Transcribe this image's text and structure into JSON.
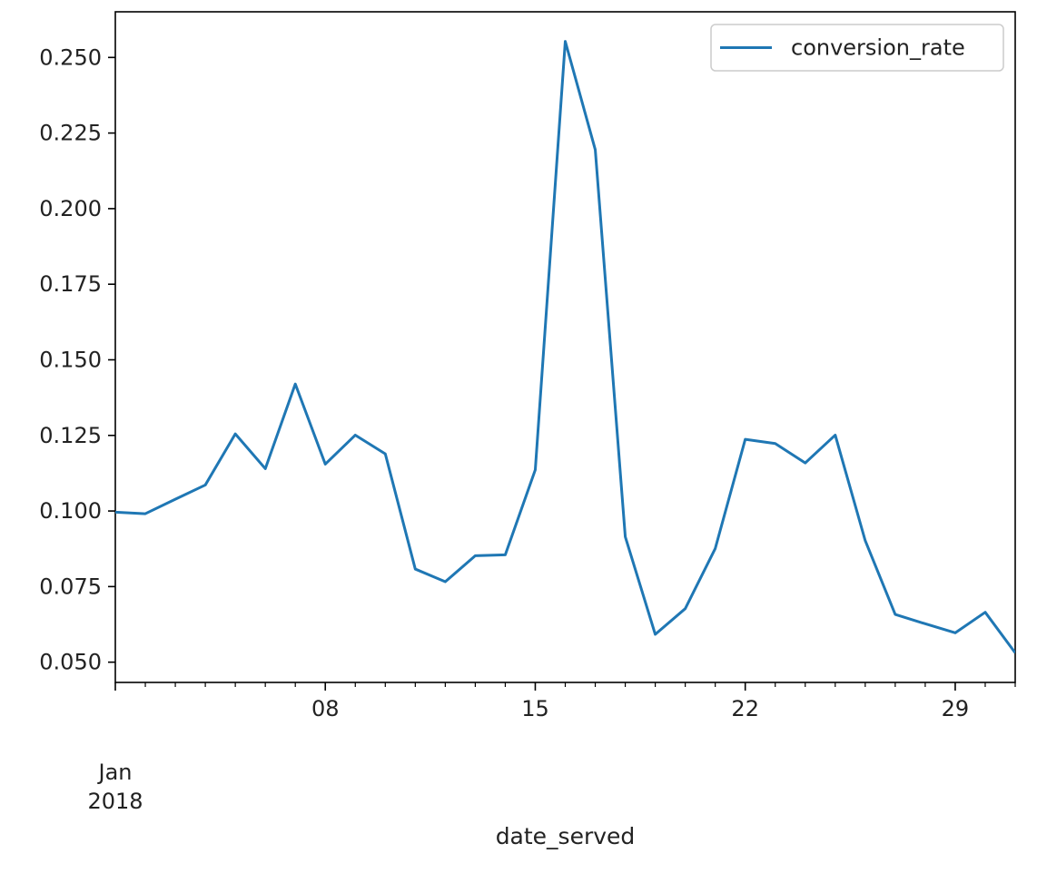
{
  "chart_data": {
    "type": "line",
    "title": "",
    "xlabel": "date_served",
    "ylabel": "",
    "x": [
      "2018-01-01",
      "2018-01-02",
      "2018-01-03",
      "2018-01-04",
      "2018-01-05",
      "2018-01-06",
      "2018-01-07",
      "2018-01-08",
      "2018-01-09",
      "2018-01-10",
      "2018-01-11",
      "2018-01-12",
      "2018-01-13",
      "2018-01-14",
      "2018-01-15",
      "2018-01-16",
      "2018-01-17",
      "2018-01-18",
      "2018-01-19",
      "2018-01-20",
      "2018-01-21",
      "2018-01-22",
      "2018-01-23",
      "2018-01-24",
      "2018-01-25",
      "2018-01-26",
      "2018-01-27",
      "2018-01-28",
      "2018-01-29",
      "2018-01-30",
      "2018-01-31"
    ],
    "series": [
      {
        "name": "conversion_rate",
        "color": "#1f77b4",
        "values": [
          0.0996,
          0.0991,
          0.1039,
          0.1086,
          0.1255,
          0.114,
          0.142,
          0.1155,
          0.1251,
          0.1189,
          0.0808,
          0.0766,
          0.0852,
          0.0855,
          0.1136,
          0.2553,
          0.2195,
          0.0915,
          0.0592,
          0.0677,
          0.0876,
          0.1237,
          0.1223,
          0.1159,
          0.1251,
          0.0902,
          0.0658,
          0.0627,
          0.0597,
          0.0665,
          0.0531
        ]
      }
    ],
    "xlim": [
      "2018-01-01",
      "2018-01-31"
    ],
    "ylim": [
      0.0433,
      0.2651
    ],
    "x_ticks": [
      {
        "date": "2018-01-08",
        "label": "08"
      },
      {
        "date": "2018-01-15",
        "label": "15"
      },
      {
        "date": "2018-01-22",
        "label": "22"
      },
      {
        "date": "2018-01-29",
        "label": "29"
      }
    ],
    "x_first_tick": {
      "date": "2018-01-01",
      "label_month": "Jan",
      "label_year": "2018"
    },
    "y_ticks": [
      {
        "value": 0.05,
        "label": "0.050"
      },
      {
        "value": 0.075,
        "label": "0.075"
      },
      {
        "value": 0.1,
        "label": "0.100"
      },
      {
        "value": 0.125,
        "label": "0.125"
      },
      {
        "value": 0.15,
        "label": "0.150"
      },
      {
        "value": 0.175,
        "label": "0.175"
      },
      {
        "value": 0.2,
        "label": "0.200"
      },
      {
        "value": 0.225,
        "label": "0.225"
      },
      {
        "value": 0.25,
        "label": "0.250"
      }
    ],
    "grid": false,
    "legend": {
      "position": "top-right",
      "entries": [
        "conversion_rate"
      ]
    }
  }
}
